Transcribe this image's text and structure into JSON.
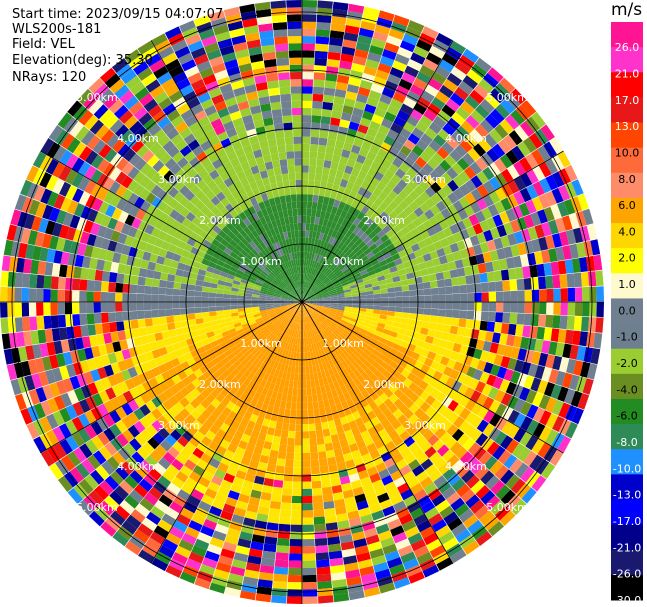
{
  "info": {
    "start_time": "Start time: 2023/09/15 04:07:07",
    "instrument": "WLS200s-181",
    "field": "Field: VEL",
    "elevation": "Elevation(deg): 35.30",
    "nrays": "NRays: 120"
  },
  "colorbar": {
    "unit": "m/s",
    "labels": [
      "26.0",
      "21.0",
      "17.0",
      "13.0",
      "10.0",
      "8.0",
      "6.0",
      "4.0",
      "2.0",
      "1.0",
      "0.0",
      "-1.0",
      "-2.0",
      "-4.0",
      "-6.0",
      "-8.0",
      "-10.0",
      "-13.0",
      "-17.0",
      "-21.0",
      "-26.0",
      "-30.0"
    ],
    "colors": [
      "#ff1493",
      "#ff33cc",
      "#ff0000",
      "#e81818",
      "#ff4500",
      "#ff6a3a",
      "#ff8c69",
      "#ffa500",
      "#ffd700",
      "#ffff00",
      "#fffacd",
      "#708090",
      "#6e7f90",
      "#9acd32",
      "#6b8e23",
      "#228b22",
      "#2e8b57",
      "#1e90ff",
      "#0000cd",
      "#0000ff",
      "#00008b",
      "#191970",
      "#000000"
    ]
  },
  "ring_labels": [
    "1.00km",
    "2.00km",
    "3.00km",
    "4.00km",
    "5.00km"
  ],
  "chart_data": {
    "type": "heatmap",
    "projection": "polar PPI",
    "field": "VEL",
    "units": "m/s",
    "nrays": 120,
    "elevation_deg": 35.3,
    "range_rings_km": [
      1,
      2,
      3,
      4,
      5
    ],
    "colorbar_range": [
      -30.0,
      26.0
    ],
    "colorbar_ticks": [
      26.0,
      21.0,
      17.0,
      13.0,
      10.0,
      8.0,
      6.0,
      4.0,
      2.0,
      1.0,
      0.0,
      -1.0,
      -2.0,
      -4.0,
      -6.0,
      -8.0,
      -10.0,
      -13.0,
      -17.0,
      -21.0,
      -26.0,
      -30.0
    ]
  }
}
